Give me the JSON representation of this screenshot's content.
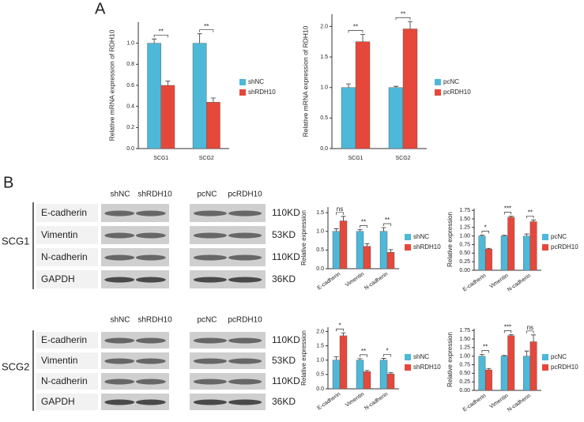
{
  "panel_labels": [
    "A",
    "B"
  ],
  "blots": [
    {
      "name": "SCG1",
      "columns": [
        "shNC",
        "shRDH10",
        "pcNC",
        "pcRDH10"
      ],
      "rows": [
        {
          "label": "E-cadherin",
          "size": "110KD"
        },
        {
          "label": "Vimentin",
          "size": "53KD"
        },
        {
          "label": "N-cadherin",
          "size": "110KD"
        },
        {
          "label": "GAPDH",
          "size": "36KD"
        }
      ]
    },
    {
      "name": "SCG2",
      "columns": [
        "shNC",
        "shRDH10",
        "pcNC",
        "pcRDH10"
      ],
      "rows": [
        {
          "label": "E-cadherin",
          "size": "110KD"
        },
        {
          "label": "Vimentin",
          "size": "53KD"
        },
        {
          "label": "N-cadherin",
          "size": "110KD"
        },
        {
          "label": "GAPDH",
          "size": "36KD"
        }
      ]
    }
  ],
  "chart_data": [
    {
      "type": "bar",
      "y_label": "Relative mRNA expression of RDH10",
      "categories": [
        "SCG1",
        "SCG2"
      ],
      "series": [
        {
          "name": "shNC",
          "color": "#4db8d8",
          "values": [
            1.0,
            1.0
          ],
          "errors": [
            0.04,
            0.09
          ]
        },
        {
          "name": "shRDH10",
          "color": "#e5483a",
          "values": [
            0.6,
            0.44
          ],
          "errors": [
            0.04,
            0.04
          ]
        }
      ],
      "annotations": [
        "**",
        "**"
      ],
      "ylim": [
        0,
        1.2
      ],
      "yticks": [
        {
          "value": 0,
          "label": "0.0"
        },
        0.2,
        0.4,
        0.6,
        0.8,
        {
          "value": 1,
          "label": "1.0"
        }
      ]
    },
    {
      "type": "bar",
      "y_label": "Relative mRNA expression of RDH10",
      "categories": [
        "SCG1",
        "SCG2"
      ],
      "series": [
        {
          "name": "pcNC",
          "color": "#4db8d8",
          "values": [
            1.0,
            1.0
          ],
          "errors": [
            0.06,
            0.02
          ]
        },
        {
          "name": "pcRDH10",
          "color": "#e5483a",
          "values": [
            1.75,
            1.96
          ],
          "errors": [
            0.12,
            0.12
          ]
        }
      ],
      "annotations": [
        "**",
        "**"
      ],
      "ylim": [
        0,
        2.2
      ],
      "yticks": [
        {
          "value": 0,
          "label": "0.0"
        },
        0.5,
        {
          "value": 1,
          "label": "1.0"
        },
        1.5,
        {
          "value": 2,
          "label": "2.0"
        }
      ]
    },
    {
      "type": "bar",
      "y_label": "Relative expression",
      "categories": [
        "E-cadherin",
        "Vimentin",
        "N-cadherin"
      ],
      "series": [
        {
          "name": "shNC",
          "color": "#4db8d8",
          "values": [
            1.0,
            1.0,
            1.0
          ],
          "errors": [
            0.07,
            0.05,
            0.1
          ]
        },
        {
          "name": "shRDH10",
          "color": "#e5483a",
          "values": [
            1.28,
            0.6,
            0.44
          ],
          "errors": [
            0.12,
            0.07,
            0.07
          ]
        }
      ],
      "annotations": [
        "ns",
        "**",
        "**"
      ],
      "ylim": [
        0,
        1.65
      ],
      "yticks": [
        {
          "value": 0,
          "label": "0.0"
        },
        0.5,
        {
          "value": 1,
          "label": "1.0"
        },
        1.5
      ]
    },
    {
      "type": "bar",
      "y_label": "Relative expression",
      "categories": [
        "E-cadherin",
        "Vimentin",
        "N-cadherin"
      ],
      "series": [
        {
          "name": "pcNC",
          "color": "#4db8d8",
          "values": [
            1.0,
            1.0,
            1.0
          ],
          "errors": [
            0.03,
            0.02,
            0.06
          ]
        },
        {
          "name": "pcRDH10",
          "color": "#e5483a",
          "values": [
            0.62,
            1.55,
            1.42
          ],
          "errors": [
            0.02,
            0.03,
            0.05
          ]
        }
      ],
      "annotations": [
        "*",
        "***",
        "**"
      ],
      "ylim": [
        0,
        1.8
      ],
      "yticks": [
        {
          "value": 0,
          "label": "0.00"
        },
        0.25,
        {
          "value": 0.5,
          "label": "0.50"
        },
        0.75,
        {
          "value": 1,
          "label": "1.00"
        },
        1.25,
        {
          "value": 1.5,
          "label": "1.50"
        },
        1.75
      ]
    },
    {
      "type": "bar",
      "y_label": "Relative expression",
      "categories": [
        "E-cadherin",
        "Vimentin",
        "N-cadherin"
      ],
      "series": [
        {
          "name": "shNC",
          "color": "#4db8d8",
          "values": [
            1.0,
            1.0,
            1.0
          ],
          "errors": [
            0.12,
            0.05,
            0.06
          ]
        },
        {
          "name": "shRDH10",
          "color": "#e5483a",
          "values": [
            1.85,
            0.6,
            0.52
          ],
          "errors": [
            0.1,
            0.04,
            0.04
          ]
        }
      ],
      "annotations": [
        "*",
        "**",
        "*"
      ],
      "ylim": [
        0,
        2.15
      ],
      "yticks": [
        {
          "value": 0,
          "label": "0.0"
        },
        0.5,
        {
          "value": 1,
          "label": "1.0"
        },
        1.5,
        {
          "value": 2,
          "label": "2.0"
        }
      ]
    },
    {
      "type": "bar",
      "y_label": "Relative expression",
      "categories": [
        "E-cadherin",
        "Vimentin",
        "N-cadherin"
      ],
      "series": [
        {
          "name": "pcNC",
          "color": "#4db8d8",
          "values": [
            1.0,
            1.0,
            1.0
          ],
          "errors": [
            0.05,
            0.02,
            0.15
          ]
        },
        {
          "name": "pcRDH10",
          "color": "#e5483a",
          "values": [
            0.6,
            1.6,
            1.42
          ],
          "errors": [
            0.04,
            0.03,
            0.2
          ]
        }
      ],
      "annotations": [
        "**",
        "***",
        "ns"
      ],
      "ylim": [
        0,
        1.8
      ],
      "yticks": [
        {
          "value": 0,
          "label": "0.00"
        },
        0.25,
        {
          "value": 0.5,
          "label": "0.50"
        },
        0.75,
        {
          "value": 1,
          "label": "1.00"
        },
        1.25,
        {
          "value": 1.5,
          "label": "1.50"
        },
        1.75
      ]
    }
  ]
}
